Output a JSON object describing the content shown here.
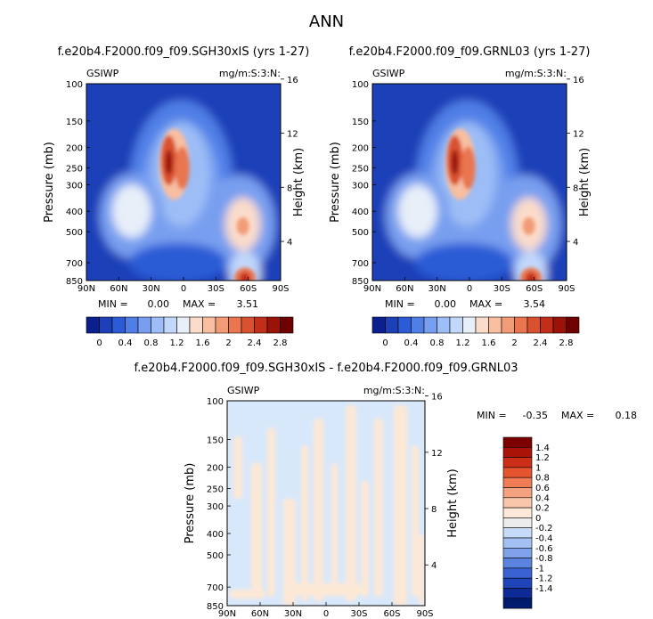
{
  "title": "ANN",
  "chart_data": [
    {
      "type": "heatmap",
      "title": "f.e20b4.F2000.f09_f09.SGH30xIS (yrs 1-27)",
      "variable": "GSIWP",
      "units": "mg/m:S:3:N:",
      "xlabel": "",
      "ylabel": "Pressure (mb)",
      "y2label": "Height (km)",
      "x_ticks": [
        "90N",
        "60N",
        "30N",
        "0",
        "30S",
        "60S",
        "90S"
      ],
      "y_ticks": [
        "100",
        "150",
        "200",
        "250",
        "300",
        "400",
        "500",
        "700",
        "850"
      ],
      "y2_ticks": [
        "16",
        "12",
        "8",
        "4"
      ],
      "stats": {
        "min_label": "MIN =",
        "min": "0.00",
        "max_label": "MAX =",
        "max": "3.51"
      },
      "colorbar_labels": [
        "0",
        "0.4",
        "0.8",
        "1.2",
        "1.6",
        "2",
        "2.4",
        "2.8"
      ],
      "features": [
        {
          "lat": 7,
          "p": 240,
          "value": 3.51
        },
        {
          "lat": -57,
          "p": 830,
          "value": 2.8
        },
        {
          "lat": 48,
          "p": 380,
          "value": 1.7
        },
        {
          "lat": -55,
          "p": 460,
          "value": 1.8
        }
      ]
    },
    {
      "type": "heatmap",
      "title": "f.e20b4.F2000.f09_f09.GRNL03 (yrs 1-27)",
      "variable": "GSIWP",
      "units": "mg/m:S:3:N:",
      "xlabel": "",
      "ylabel": "Pressure (mb)",
      "y2label": "Height (km)",
      "x_ticks": [
        "90N",
        "60N",
        "30N",
        "0",
        "30S",
        "60S",
        "90S"
      ],
      "y_ticks": [
        "100",
        "150",
        "200",
        "250",
        "300",
        "400",
        "500",
        "700",
        "850"
      ],
      "y2_ticks": [
        "16",
        "12",
        "8",
        "4"
      ],
      "stats": {
        "min_label": "MIN =",
        "min": "0.00",
        "max_label": "MAX =",
        "max": "3.54"
      },
      "colorbar_labels": [
        "0",
        "0.4",
        "0.8",
        "1.2",
        "1.6",
        "2",
        "2.4",
        "2.8"
      ],
      "features": [
        {
          "lat": 7,
          "p": 240,
          "value": 3.54
        },
        {
          "lat": -57,
          "p": 830,
          "value": 2.8
        },
        {
          "lat": 48,
          "p": 380,
          "value": 1.7
        },
        {
          "lat": -55,
          "p": 460,
          "value": 1.8
        }
      ]
    },
    {
      "type": "heatmap",
      "title": "f.e20b4.F2000.f09_f09.SGH30xIS - f.e20b4.F2000.f09_f09.GRNL03",
      "variable": "GSIWP",
      "units": "mg/m:S:3:N:",
      "xlabel": "",
      "ylabel": "Pressure (mb)",
      "y2label": "Height (km)",
      "x_ticks": [
        "90N",
        "60N",
        "30N",
        "0",
        "30S",
        "60S",
        "90S"
      ],
      "y_ticks": [
        "100",
        "150",
        "200",
        "250",
        "300",
        "400",
        "500",
        "700",
        "850"
      ],
      "y2_ticks": [
        "16",
        "12",
        "8",
        "4"
      ],
      "stats": {
        "min_label": "MIN =",
        "min": "-0.35",
        "max_label": "MAX =",
        "max": "0.18"
      },
      "colorbar_labels": [
        "1.4",
        "1.2",
        "1",
        "0.8",
        "0.6",
        "0.4",
        "0.2",
        "0",
        "-0.2",
        "-0.4",
        "-0.6",
        "-0.8",
        "-1",
        "-1.2",
        "-1.4"
      ]
    }
  ]
}
